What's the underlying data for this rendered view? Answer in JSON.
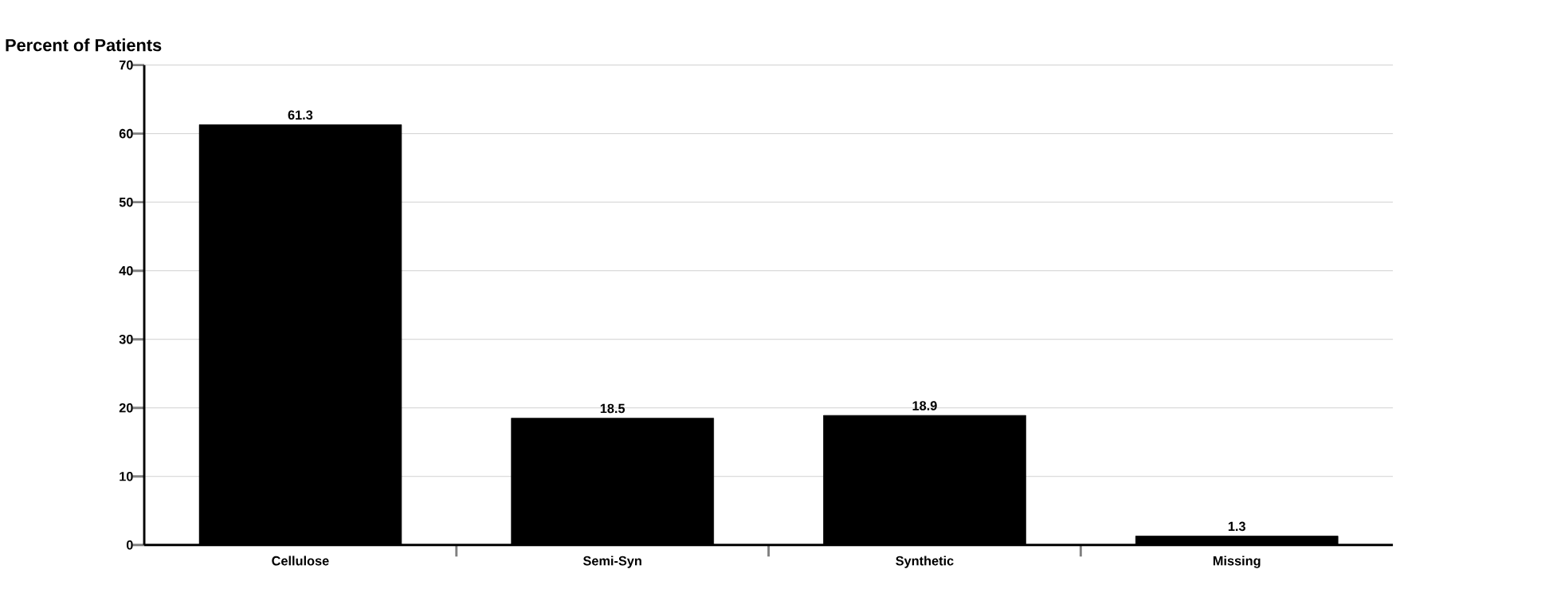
{
  "chart_data": {
    "type": "bar",
    "ylabel": "Percent of Patients",
    "categories": [
      "Cellulose",
      "Semi-Syn",
      "Synthetic",
      "Missing"
    ],
    "values": [
      61.3,
      18.5,
      18.9,
      1.3
    ],
    "color": "#000000",
    "ylim": [
      0,
      70
    ],
    "yticks": [
      0,
      10,
      20,
      30,
      40,
      50,
      60,
      70
    ],
    "grid": "y",
    "data_labels": true
  }
}
